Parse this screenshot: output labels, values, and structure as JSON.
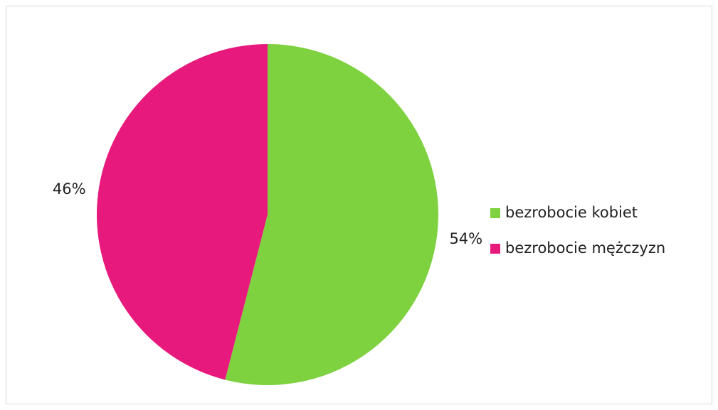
{
  "chart_data": {
    "type": "pie",
    "categories": [
      "bezrobocie kobiet",
      "bezrobocie mężczyzn"
    ],
    "values": [
      54,
      46
    ],
    "value_labels": [
      "54%",
      "46%"
    ],
    "colors": [
      "#7ed23f",
      "#e8197c"
    ],
    "legend": "right"
  }
}
